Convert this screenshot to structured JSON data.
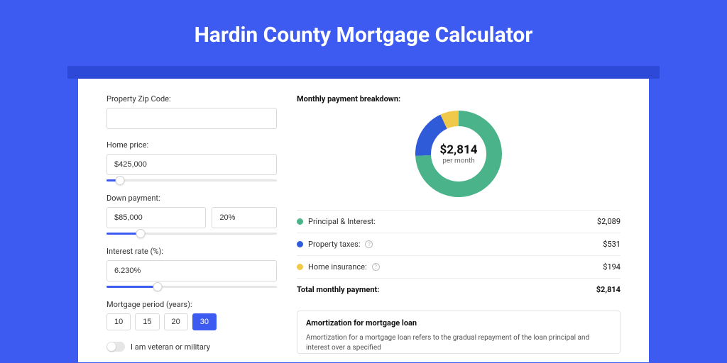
{
  "page": {
    "title": "Hardin County Mortgage Calculator",
    "colors": {
      "background": "#3d5af1",
      "shadow_bar": "#2d49d8",
      "card_bg": "#ffffff",
      "accent": "#3d5af1"
    }
  },
  "form": {
    "zip": {
      "label": "Property Zip Code:",
      "value": ""
    },
    "home_price": {
      "label": "Home price:",
      "value": "$425,000",
      "slider_pct": 8
    },
    "down_payment": {
      "label": "Down payment:",
      "amount": "$85,000",
      "percent": "20%",
      "slider_pct": 20
    },
    "interest_rate": {
      "label": "Interest rate (%):",
      "value": "6.230%",
      "slider_pct": 30
    },
    "period": {
      "label": "Mortgage period (years):",
      "options": [
        "10",
        "15",
        "20",
        "30"
      ],
      "selected": "30"
    },
    "veteran": {
      "label": "I am veteran or military",
      "checked": false
    }
  },
  "breakdown": {
    "heading": "Monthly payment breakdown:",
    "donut": {
      "type": "pie",
      "amount": "$2,814",
      "sub": "per month",
      "size": 122,
      "thickness": 22,
      "background_color": "#ffffff",
      "slices": [
        {
          "label": "Principal & Interest",
          "value": 2089,
          "color": "#4bb38a"
        },
        {
          "label": "Property taxes",
          "value": 531,
          "color": "#2f5ad8"
        },
        {
          "label": "Home insurance",
          "value": 194,
          "color": "#f0c94b"
        }
      ]
    },
    "rows": [
      {
        "dot": "#4bb38a",
        "label": "Principal & Interest:",
        "info": false,
        "value": "$2,089"
      },
      {
        "dot": "#2f5ad8",
        "label": "Property taxes:",
        "info": true,
        "value": "$531"
      },
      {
        "dot": "#f0c94b",
        "label": "Home insurance:",
        "info": true,
        "value": "$194"
      }
    ],
    "total": {
      "label": "Total monthly payment:",
      "value": "$2,814"
    }
  },
  "amortization": {
    "title": "Amortization for mortgage loan",
    "text": "Amortization for a mortgage loan refers to the gradual repayment of the loan principal and interest over a specified"
  }
}
